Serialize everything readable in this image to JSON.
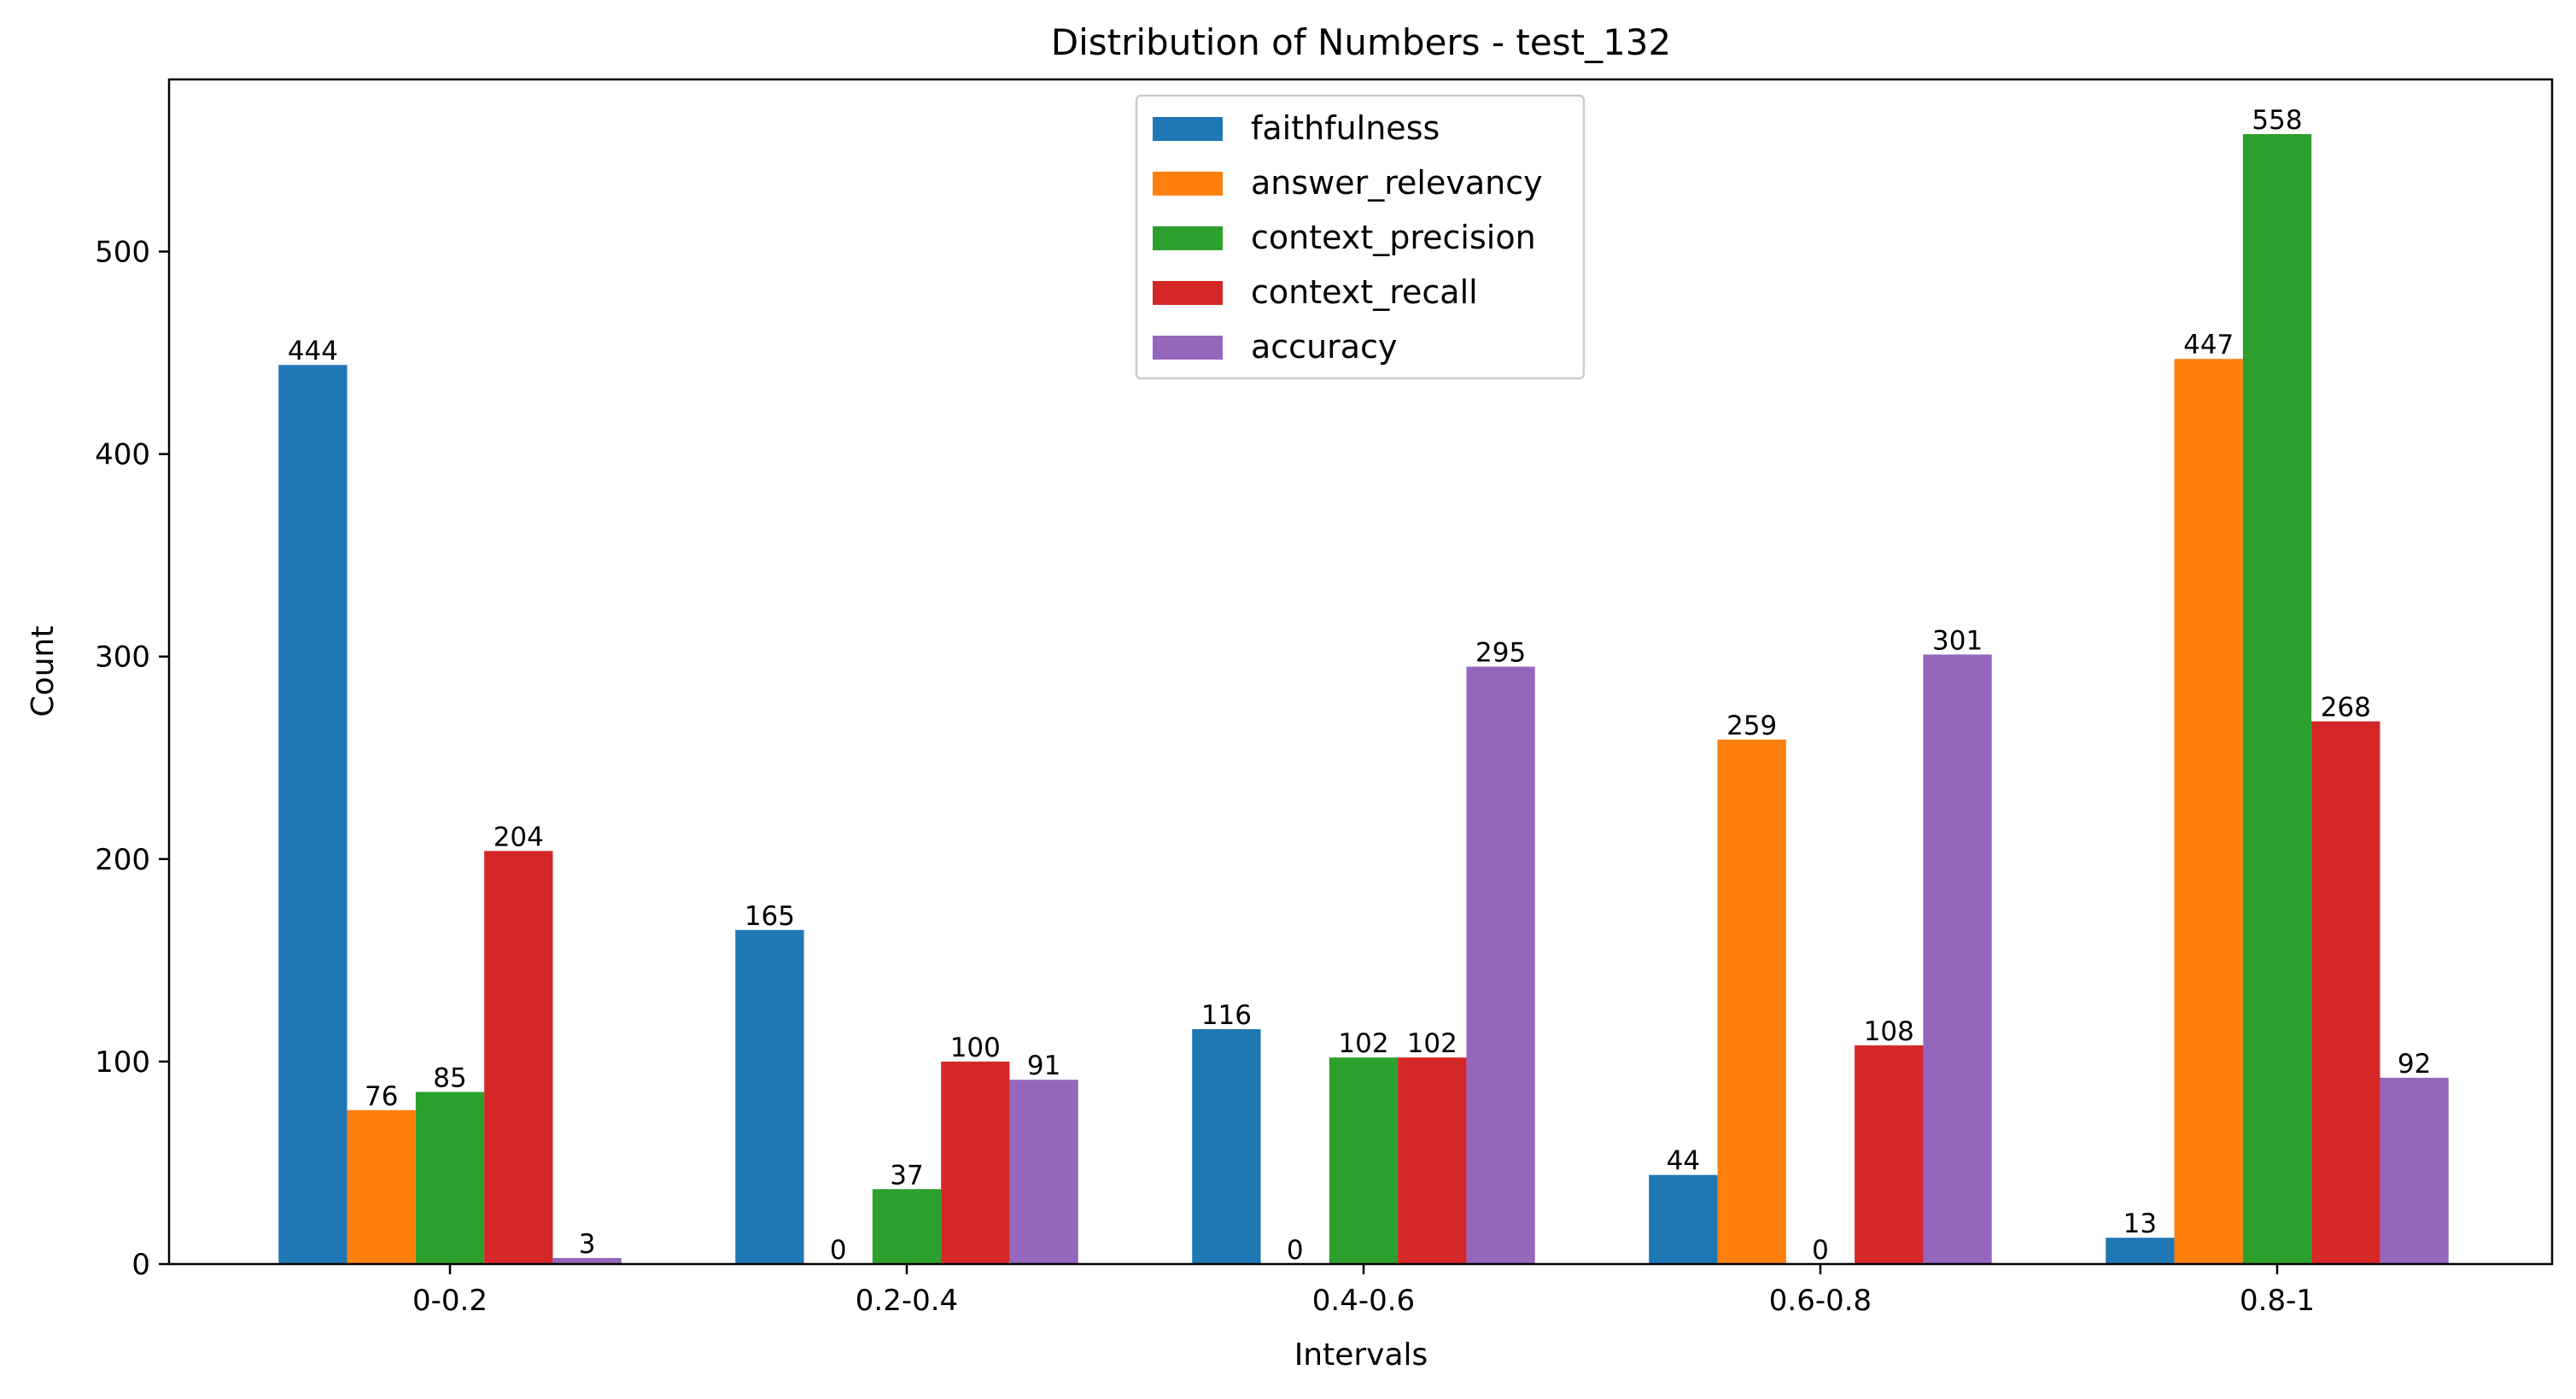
{
  "chart_data": {
    "type": "bar",
    "title": "Distribution of Numbers - test_132",
    "xlabel": "Intervals",
    "ylabel": "Count",
    "ylim": [
      0,
      585
    ],
    "yticks": [
      0,
      100,
      200,
      300,
      400,
      500
    ],
    "categories": [
      "0-0.2",
      "0.2-0.4",
      "0.4-0.6",
      "0.6-0.8",
      "0.8-1"
    ],
    "series": [
      {
        "name": "faithfulness",
        "color": "#1f77b4",
        "values": [
          444,
          165,
          116,
          44,
          13
        ]
      },
      {
        "name": "answer_relevancy",
        "color": "#ff7f0e",
        "values": [
          76,
          0,
          0,
          259,
          447
        ]
      },
      {
        "name": "context_precision",
        "color": "#2ca02c",
        "values": [
          85,
          37,
          102,
          0,
          558
        ]
      },
      {
        "name": "context_recall",
        "color": "#d62728",
        "values": [
          204,
          100,
          102,
          108,
          268
        ]
      },
      {
        "name": "accuracy",
        "color": "#9467bd",
        "values": [
          3,
          91,
          295,
          301,
          92
        ]
      }
    ],
    "legend_position": "top-center",
    "grid": false
  }
}
